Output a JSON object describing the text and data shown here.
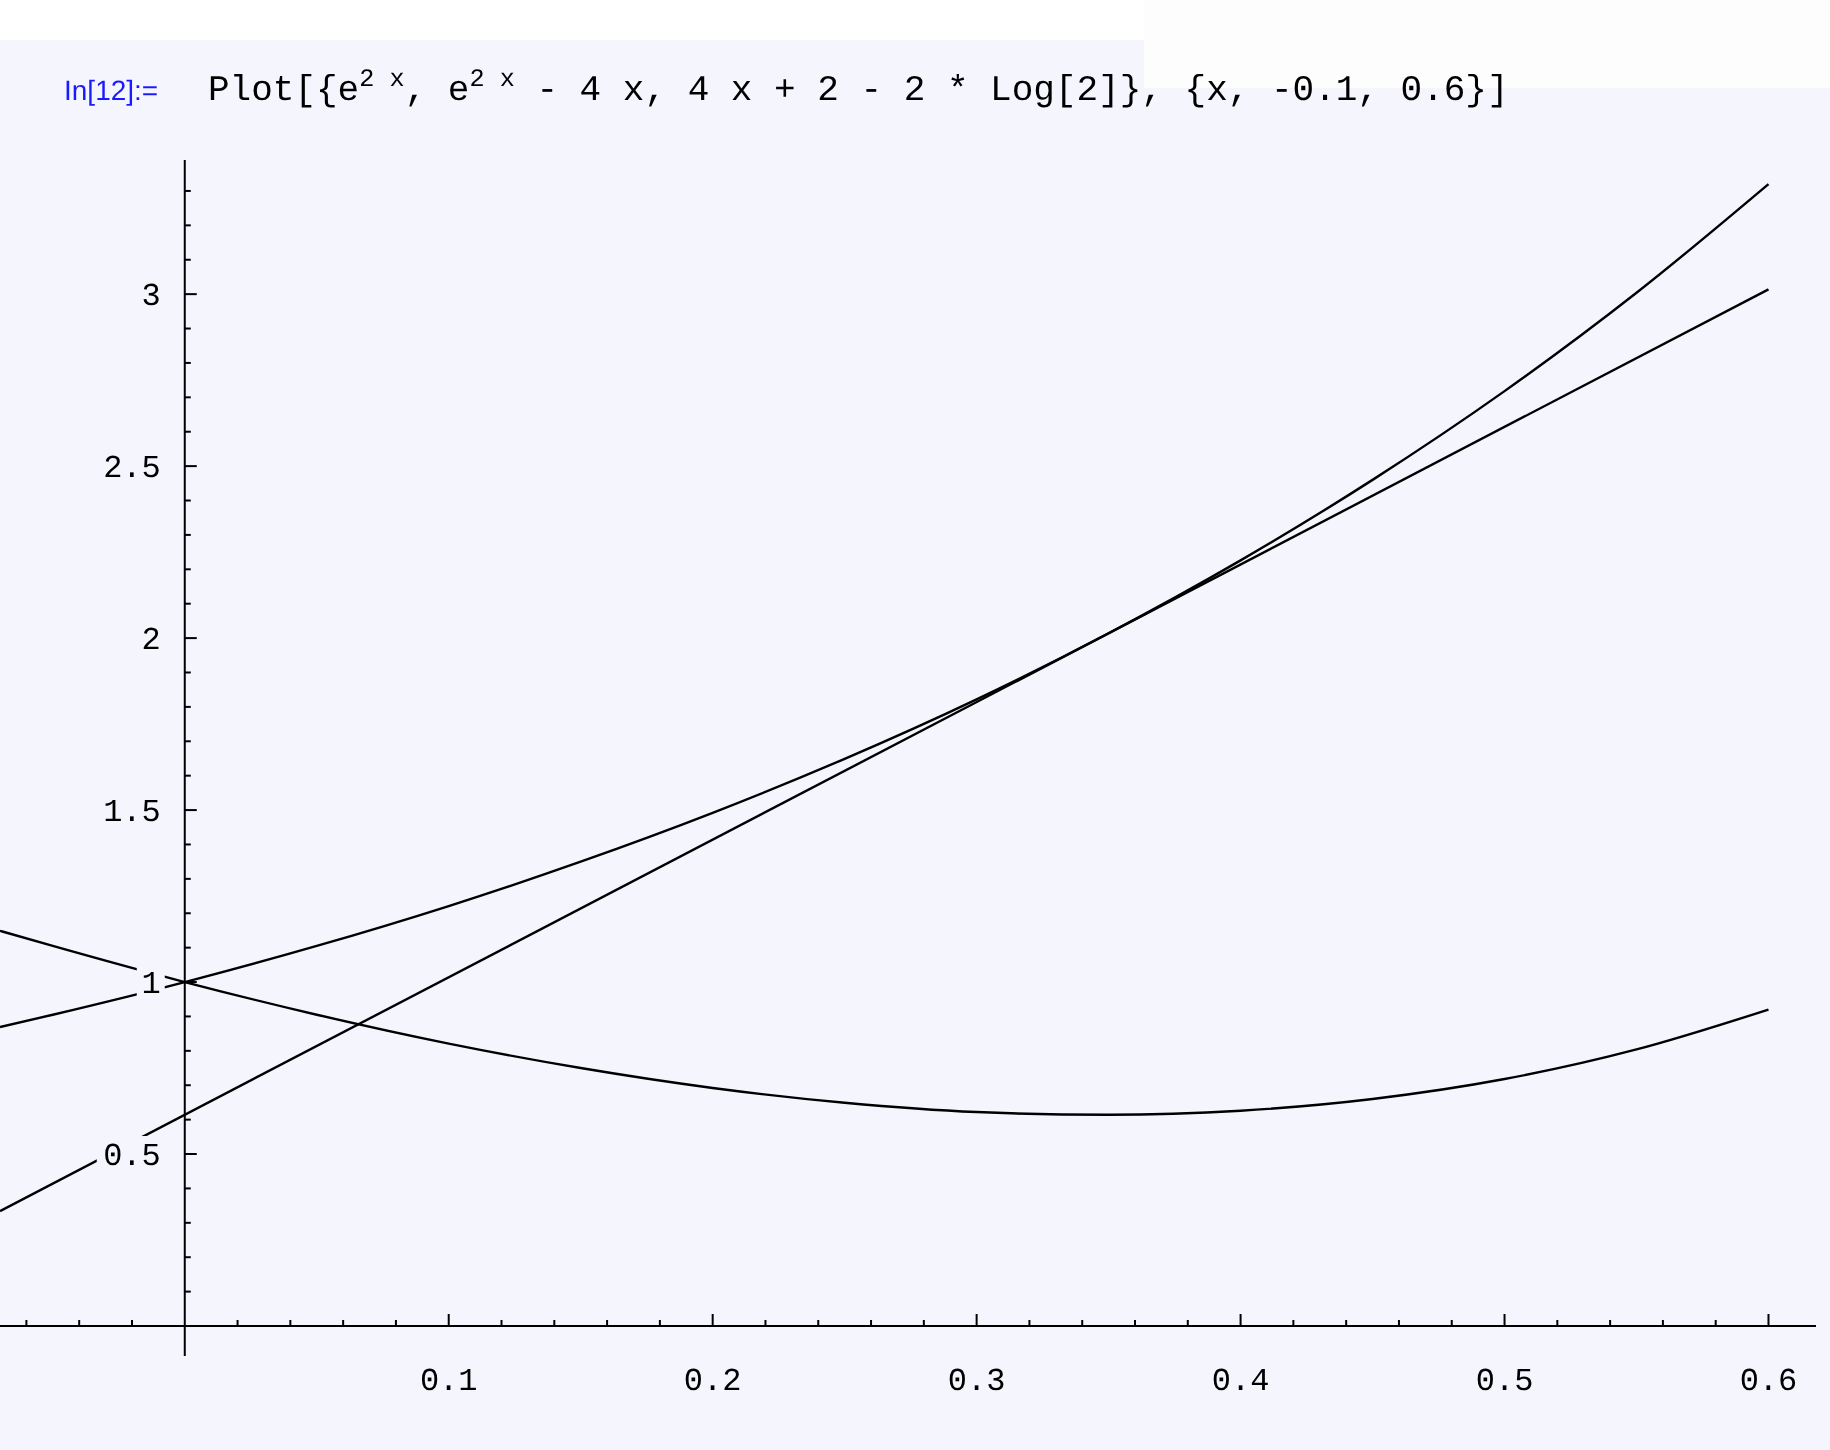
{
  "chart_data": {
    "type": "line",
    "title": "Plot[{e$^{2 x}$, e$^{2 x}$ - 4 x, 4 x + 2 - 2 * Log[2]}, {x, -0.1, 0.6}]",
    "annotations": [
      "In[12]:="
    ],
    "xlim": [
      -0.07,
      0.618
    ],
    "ylim": [
      0,
      3.39
    ],
    "xticks": [
      {
        "value": -0.06,
        "label": null
      },
      {
        "value": -0.04,
        "label": null
      },
      {
        "value": -0.02,
        "label": null
      },
      {
        "value": 0.02,
        "label": null
      },
      {
        "value": 0.04,
        "label": null
      },
      {
        "value": 0.06,
        "label": null
      },
      {
        "value": 0.08,
        "label": null
      },
      0.1,
      {
        "value": 0.12,
        "label": null
      },
      {
        "value": 0.14,
        "label": null
      },
      {
        "value": 0.16,
        "label": null
      },
      {
        "value": 0.18,
        "label": null
      },
      0.2,
      {
        "value": 0.22,
        "label": null
      },
      {
        "value": 0.24,
        "label": null
      },
      {
        "value": 0.26,
        "label": null
      },
      {
        "value": 0.28,
        "label": null
      },
      0.3,
      {
        "value": 0.32,
        "label": null
      },
      {
        "value": 0.34,
        "label": null
      },
      {
        "value": 0.36,
        "label": null
      },
      {
        "value": 0.38,
        "label": null
      },
      0.4,
      {
        "value": 0.42,
        "label": null
      },
      {
        "value": 0.44,
        "label": null
      },
      {
        "value": 0.46,
        "label": null
      },
      {
        "value": 0.48,
        "label": null
      },
      0.5,
      {
        "value": 0.52,
        "label": null
      },
      {
        "value": 0.54,
        "label": null
      },
      {
        "value": 0.56,
        "label": null
      },
      {
        "value": 0.58,
        "label": null
      },
      0.6
    ],
    "yticks": [
      {
        "value": 0.1,
        "label": null
      },
      {
        "value": 0.2,
        "label": null
      },
      {
        "value": 0.3,
        "label": null
      },
      {
        "value": 0.4,
        "label": null
      },
      0.5,
      {
        "value": 0.6,
        "label": null
      },
      {
        "value": 0.7,
        "label": null
      },
      {
        "value": 0.8,
        "label": null
      },
      {
        "value": 0.9,
        "label": null
      },
      1,
      {
        "value": 1.1,
        "label": null
      },
      {
        "value": 1.2,
        "label": null
      },
      {
        "value": 1.3,
        "label": null
      },
      {
        "value": 1.4,
        "label": null
      },
      1.5,
      {
        "value": 1.6,
        "label": null
      },
      {
        "value": 1.7,
        "label": null
      },
      {
        "value": 1.8,
        "label": null
      },
      {
        "value": 1.9,
        "label": null
      },
      2,
      {
        "value": 2.1,
        "label": null
      },
      {
        "value": 2.2,
        "label": null
      },
      {
        "value": 2.3,
        "label": null
      },
      {
        "value": 2.4,
        "label": null
      },
      2.5,
      {
        "value": 2.6,
        "label": null
      },
      {
        "value": 2.7,
        "label": null
      },
      {
        "value": 2.8,
        "label": null
      },
      {
        "value": 2.9,
        "label": null
      },
      3,
      {
        "value": 3.1,
        "label": null
      },
      {
        "value": 3.2,
        "label": null
      },
      {
        "value": 3.3,
        "label": null
      }
    ],
    "series": [
      {
        "color": "#000000",
        "x": [
          -0.07,
          -0.05,
          0,
          0.05,
          0.1,
          0.15,
          0.2,
          0.25,
          0.3,
          0.35,
          0.4,
          0.45,
          0.5,
          0.55,
          0.6
        ],
        "values": [
          0.869,
          0.905,
          1,
          1.105,
          1.221,
          1.35,
          1.492,
          1.649,
          1.822,
          2.014,
          2.226,
          2.46,
          2.718,
          3.004,
          3.32
        ]
      },
      {
        "color": "#000000",
        "x": [
          -0.07,
          -0.05,
          0,
          0.05,
          0.1,
          0.15,
          0.2,
          0.25,
          0.3,
          0.35,
          0.4,
          0.45,
          0.5,
          0.55,
          0.6
        ],
        "values": [
          1.149,
          1.105,
          1,
          0.905,
          0.821,
          0.75,
          0.692,
          0.649,
          0.622,
          0.614,
          0.626,
          0.66,
          0.718,
          0.804,
          0.92
        ]
      },
      {
        "color": "#000000",
        "x": [
          -0.07,
          0.6
        ],
        "values": [
          0.334,
          3.014
        ]
      }
    ],
    "marker": "none",
    "line_style": "solid"
  }
}
